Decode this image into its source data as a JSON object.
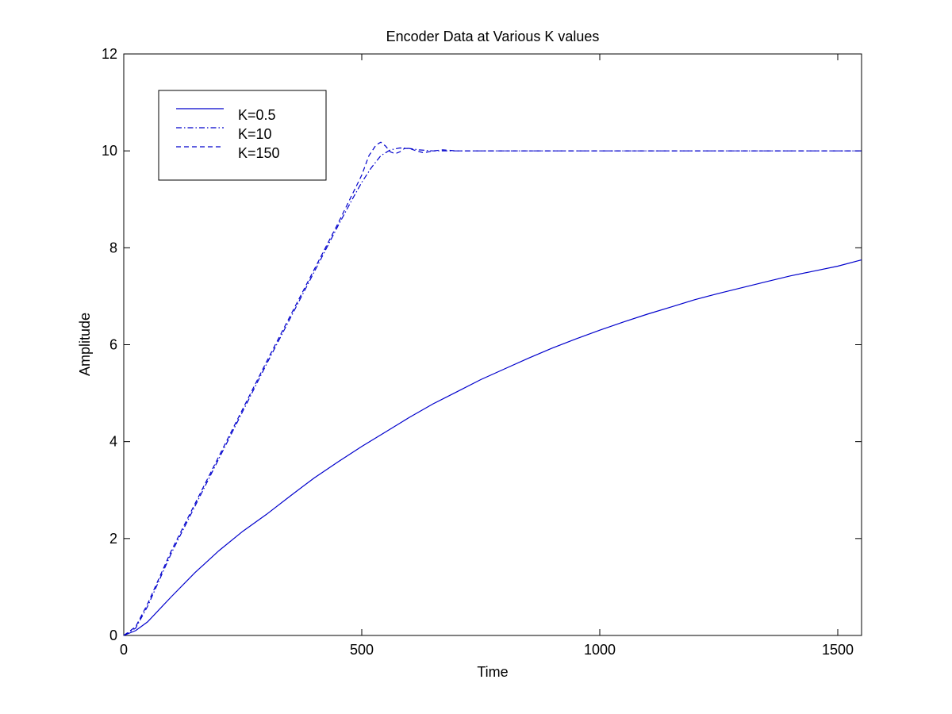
{
  "chart_data": {
    "type": "line",
    "title": "Encoder Data at Various K values",
    "xlabel": "Time",
    "ylabel": "Amplitude",
    "xlim": [
      0,
      1550
    ],
    "ylim": [
      0,
      12
    ],
    "xticks": [
      0,
      500,
      1000,
      1500
    ],
    "yticks": [
      0,
      2,
      4,
      6,
      8,
      10,
      12
    ],
    "grid": false,
    "legend_position": "top-left",
    "line_color": "#0000cc",
    "series": [
      {
        "name": "K=0.5",
        "style": "solid",
        "x": [
          0,
          25,
          50,
          100,
          150,
          200,
          250,
          300,
          350,
          400,
          450,
          500,
          550,
          600,
          650,
          700,
          750,
          800,
          850,
          900,
          950,
          1000,
          1050,
          1100,
          1150,
          1200,
          1250,
          1300,
          1350,
          1400,
          1450,
          1500,
          1550
        ],
        "y": [
          0,
          0.1,
          0.28,
          0.8,
          1.3,
          1.75,
          2.15,
          2.5,
          2.88,
          3.25,
          3.58,
          3.9,
          4.2,
          4.5,
          4.78,
          5.03,
          5.28,
          5.5,
          5.72,
          5.93,
          6.12,
          6.3,
          6.47,
          6.63,
          6.78,
          6.93,
          7.06,
          7.18,
          7.3,
          7.42,
          7.52,
          7.62,
          7.75
        ]
      },
      {
        "name": "K=10",
        "style": "dashdot",
        "x": [
          0,
          25,
          50,
          100,
          200,
          300,
          400,
          450,
          480,
          500,
          520,
          540,
          560,
          580,
          600,
          620,
          650,
          700,
          800,
          900,
          1000,
          1100,
          1200,
          1300,
          1400,
          1500,
          1550
        ],
        "y": [
          0,
          0.15,
          0.6,
          1.7,
          3.65,
          5.6,
          7.5,
          8.45,
          9.0,
          9.35,
          9.65,
          9.9,
          10.02,
          10.06,
          10.05,
          10.02,
          10.0,
          10.0,
          10.0,
          10.0,
          10.0,
          10.0,
          10.0,
          10.0,
          10.0,
          10.0,
          10.0
        ]
      },
      {
        "name": "K=150",
        "style": "dashed",
        "x": [
          0,
          25,
          50,
          100,
          200,
          300,
          400,
          450,
          480,
          500,
          515,
          530,
          540,
          550,
          560,
          570,
          580,
          590,
          600,
          615,
          630,
          650,
          670,
          700,
          800,
          900,
          1000,
          1100,
          1200,
          1300,
          1400,
          1500,
          1550
        ],
        "y": [
          0,
          0.18,
          0.65,
          1.75,
          3.7,
          5.65,
          7.55,
          8.5,
          9.1,
          9.5,
          9.9,
          10.12,
          10.18,
          10.1,
          9.98,
          9.94,
          9.98,
          10.05,
          10.05,
          10.0,
          9.96,
          10.0,
          10.02,
          10.0,
          10.0,
          10.0,
          10.0,
          10.0,
          10.0,
          10.0,
          10.0,
          10.0,
          10.0
        ]
      }
    ]
  }
}
